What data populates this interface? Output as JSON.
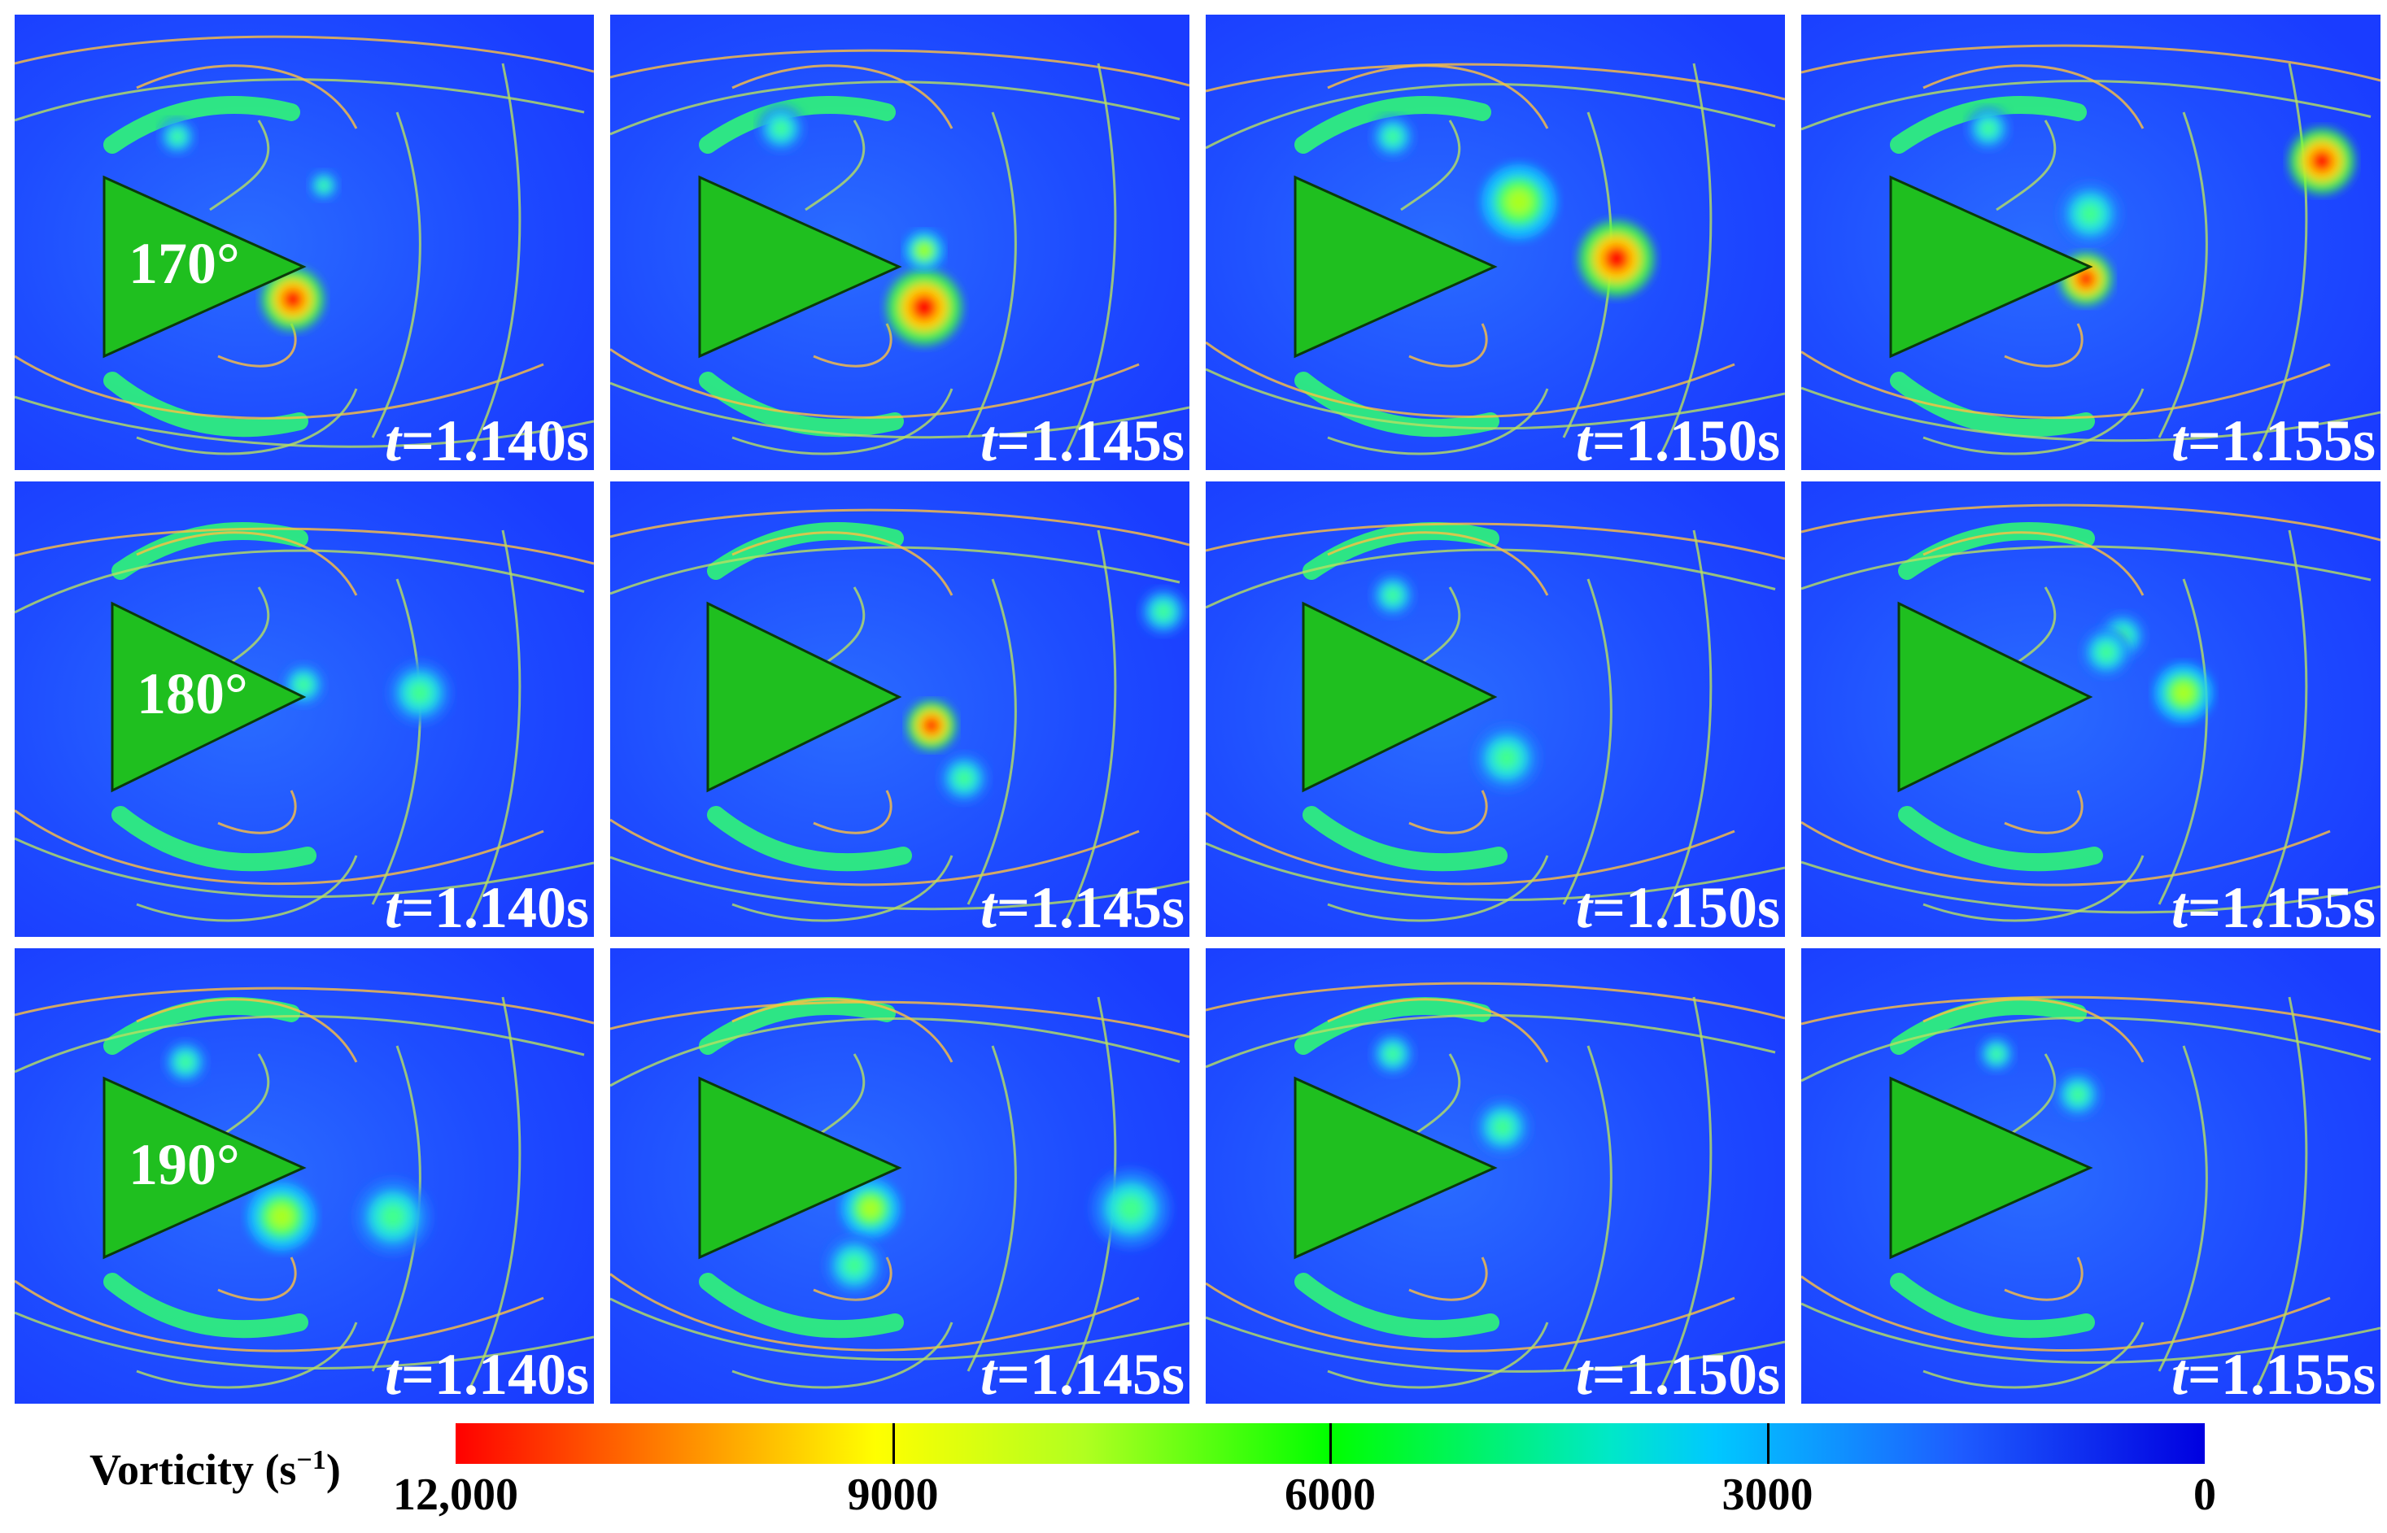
{
  "rows": [
    {
      "angle_label": "170°",
      "panels": [
        {
          "time_prefix": "t",
          "time_value": "=1.140s"
        },
        {
          "time_prefix": "t",
          "time_value": "=1.145s"
        },
        {
          "time_prefix": "t",
          "time_value": "=1.150s"
        },
        {
          "time_prefix": "t",
          "time_value": "=1.155s"
        }
      ]
    },
    {
      "angle_label": "180°",
      "panels": [
        {
          "time_prefix": "t",
          "time_value": "=1.140s"
        },
        {
          "time_prefix": "t",
          "time_value": "=1.145s"
        },
        {
          "time_prefix": "t",
          "time_value": "=1.150s"
        },
        {
          "time_prefix": "t",
          "time_value": "=1.155s"
        }
      ]
    },
    {
      "angle_label": "190°",
      "panels": [
        {
          "time_prefix": "t",
          "time_value": "=1.140s"
        },
        {
          "time_prefix": "t",
          "time_value": "=1.145s"
        },
        {
          "time_prefix": "t",
          "time_value": "=1.150s"
        },
        {
          "time_prefix": "t",
          "time_value": "=1.155s"
        }
      ]
    }
  ],
  "legend": {
    "title": "Vorticity (s",
    "title_exponent": "−1",
    "title_close": ")",
    "ticks": [
      "12,000",
      "9000",
      "6000",
      "3000",
      "0"
    ]
  },
  "colors": {
    "background_field": "#1a3cff",
    "triangle_fill": "#1fbf1f",
    "streamline": "#b8e060",
    "vortex_core_high": "#ff1000",
    "vortex_core_mid": "#ffe000",
    "vortex_ring": "#00ff80"
  }
}
